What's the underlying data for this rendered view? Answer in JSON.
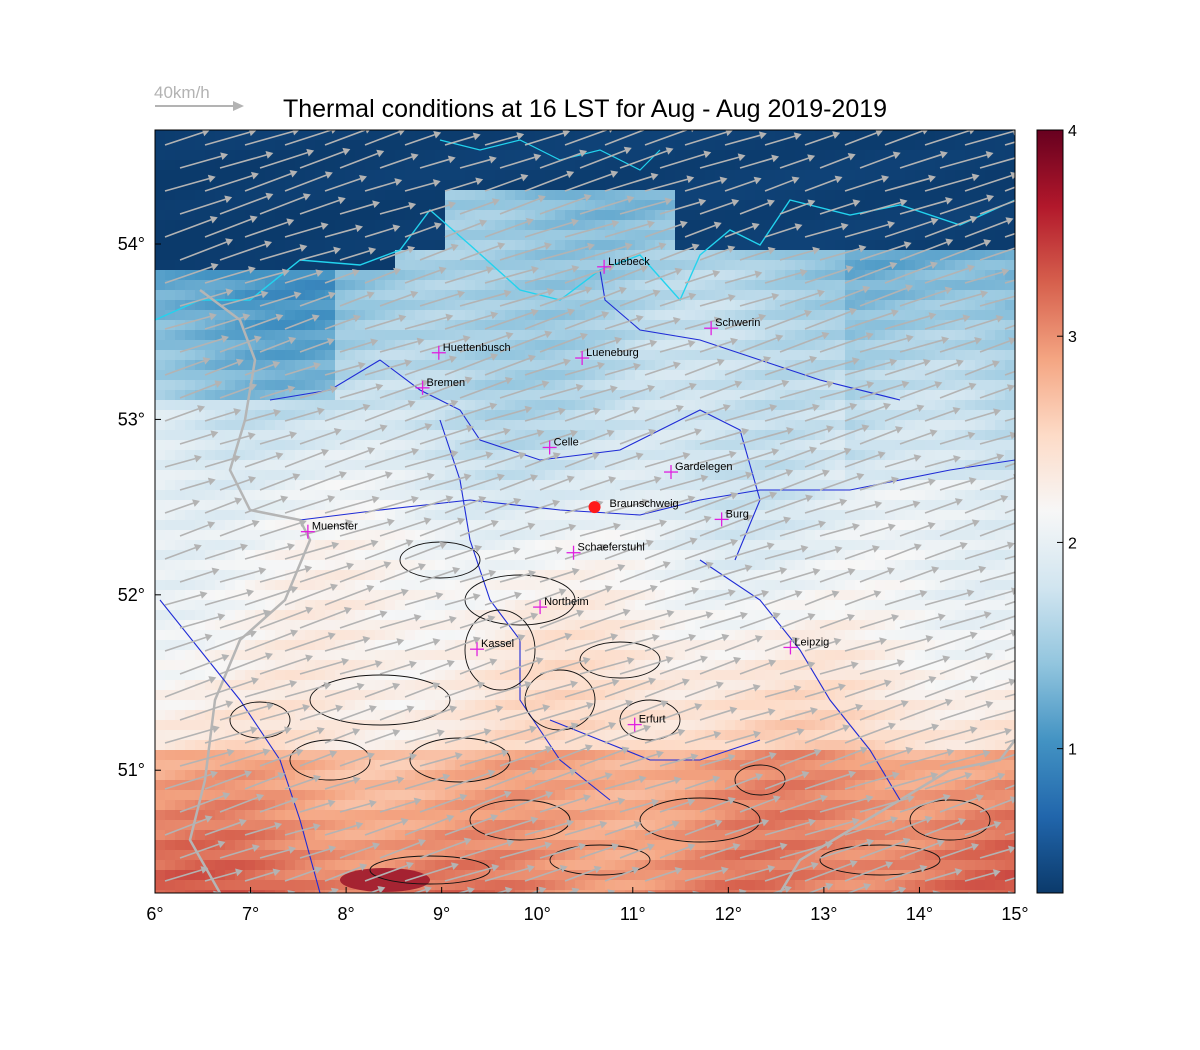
{
  "title": "Thermal conditions at 16 LST for Aug - Aug  2019-2019",
  "wind_reference": {
    "label": "40km/h"
  },
  "map": {
    "lon_range": [
      6,
      15
    ],
    "lat_range": [
      50.3,
      54.65
    ],
    "x_ticks": [
      {
        "value": 6,
        "label": "6°"
      },
      {
        "value": 7,
        "label": "7°"
      },
      {
        "value": 8,
        "label": "8°"
      },
      {
        "value": 9,
        "label": "9°"
      },
      {
        "value": 10,
        "label": "10°"
      },
      {
        "value": 11,
        "label": "11°"
      },
      {
        "value": 12,
        "label": "12°"
      },
      {
        "value": 13,
        "label": "13°"
      },
      {
        "value": 14,
        "label": "14°"
      },
      {
        "value": 15,
        "label": "15°"
      }
    ],
    "y_ticks": [
      {
        "value": 51,
        "label": "51°"
      },
      {
        "value": 52,
        "label": "52°"
      },
      {
        "value": 53,
        "label": "53°"
      },
      {
        "value": 54,
        "label": "54°"
      }
    ],
    "cities": [
      {
        "name": "Luebeck",
        "lon": 10.7,
        "lat": 53.87
      },
      {
        "name": "Schwerin",
        "lon": 11.82,
        "lat": 53.52
      },
      {
        "name": "Huettenbusch",
        "lon": 8.97,
        "lat": 53.38
      },
      {
        "name": "Lueneburg",
        "lon": 10.47,
        "lat": 53.35
      },
      {
        "name": "Bremen",
        "lon": 8.8,
        "lat": 53.18
      },
      {
        "name": "Celle",
        "lon": 10.13,
        "lat": 52.84
      },
      {
        "name": "Gardelegen",
        "lon": 11.4,
        "lat": 52.7
      },
      {
        "name": "Burg",
        "lon": 11.93,
        "lat": 52.43
      },
      {
        "name": "Muenster",
        "lon": 7.6,
        "lat": 52.36
      },
      {
        "name": "Schaeferstuhl",
        "lon": 10.38,
        "lat": 52.24
      },
      {
        "name": "Northeim",
        "lon": 10.03,
        "lat": 51.93
      },
      {
        "name": "Kassel",
        "lon": 9.37,
        "lat": 51.69
      },
      {
        "name": "Leipzig",
        "lon": 12.65,
        "lat": 51.7
      },
      {
        "name": "Erfurt",
        "lon": 11.02,
        "lat": 51.26
      }
    ],
    "station": {
      "name": "Braunschweig",
      "lon": 10.6,
      "lat": 52.5,
      "color": "#ff1a1a"
    }
  },
  "colorbar": {
    "min": 0.3,
    "max": 4.0,
    "ticks": [
      {
        "value": 1,
        "label": "1"
      },
      {
        "value": 2,
        "label": "2"
      },
      {
        "value": 3,
        "label": "3"
      },
      {
        "value": 4,
        "label": "4"
      }
    ],
    "colors": [
      "#0b3a6b",
      "#2166ac",
      "#4393c3",
      "#92c5de",
      "#d1e5f0",
      "#f7f7f7",
      "#fddbc7",
      "#f4a582",
      "#d6604d",
      "#b2182b",
      "#67001f"
    ]
  },
  "palette": {
    "sea": "#0b3a6b",
    "coast": "#22d3ee",
    "river": "#1f2bd6",
    "border": "#b5b5b5",
    "arrow": "#b3b3b3",
    "contour": "#111111",
    "city_marker": "#e020e0"
  }
}
